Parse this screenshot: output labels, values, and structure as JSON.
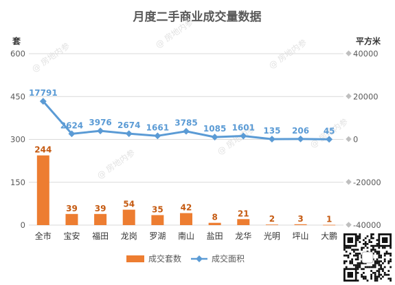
{
  "chart_data": {
    "type": "bar+line",
    "title": "月度二手商业成交量数据",
    "categories": [
      "全市",
      "宝安",
      "福田",
      "龙岗",
      "罗湖",
      "南山",
      "盐田",
      "龙华",
      "光明",
      "坪山",
      "大鹏"
    ],
    "y_left_unit": "套",
    "y_right_unit": "平方米",
    "y_left_ticks": [
      "0",
      "150",
      "300",
      "450",
      "600"
    ],
    "y_right_ticks": [
      "-40000",
      "-20000",
      "0",
      "20000",
      "40000"
    ],
    "ylim_left": [
      0,
      600
    ],
    "ylim_right": [
      -40000,
      40000
    ],
    "series": [
      {
        "name": "成交套数",
        "type": "bar",
        "axis": "left",
        "values": [
          244,
          39,
          39,
          54,
          35,
          42,
          8,
          21,
          2,
          3,
          1
        ],
        "labels": [
          "244",
          "39",
          "39",
          "54",
          "35",
          "42",
          "8",
          "21",
          "2",
          "3",
          "1"
        ]
      },
      {
        "name": "成交面积",
        "type": "line",
        "axis": "right",
        "values": [
          17791,
          2624,
          3976,
          2674,
          1661,
          3785,
          1085,
          1601,
          135,
          206,
          45
        ],
        "labels": [
          "17791",
          "2624",
          "3976",
          "2674",
          "1661",
          "3785",
          "1085",
          "1601",
          "135",
          "206",
          "45"
        ]
      }
    ],
    "grid": true,
    "legend": "bottom",
    "colors": {
      "bar": "#ED7D31",
      "line": "#5B9BD5",
      "axis_text": "#595959",
      "grid": "#D9D9D9"
    }
  },
  "watermark": "房地内参"
}
